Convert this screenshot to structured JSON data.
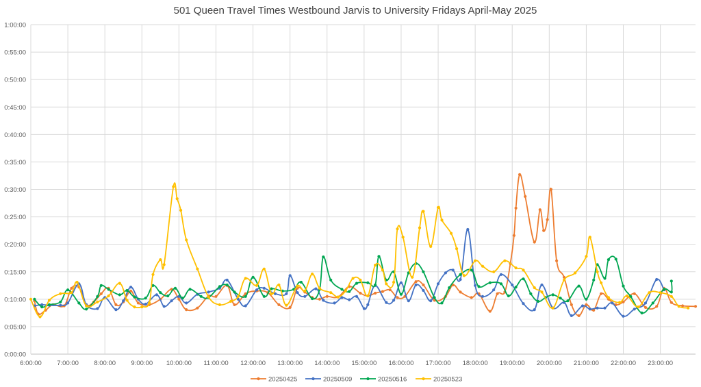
{
  "chart_data": {
    "type": "line",
    "title": "501 Queen Travel Times Westbound Jarvis to University Fridays April-May 2025",
    "xlabel": "",
    "ylabel": "",
    "x_ticks": [
      "6:00:00",
      "7:00:00",
      "8:00:00",
      "9:00:00",
      "10:00:00",
      "11:00:00",
      "12:00:00",
      "13:00:00",
      "14:00:00",
      "15:00:00",
      "16:00:00",
      "17:00:00",
      "18:00:00",
      "19:00:00",
      "20:00:00",
      "21:00:00",
      "22:00:00",
      "23:00:00"
    ],
    "y_ticks": [
      "0:00:00",
      "0:05:00",
      "0:10:00",
      "0:15:00",
      "0:20:00",
      "0:25:00",
      "0:30:00",
      "0:35:00",
      "0:40:00",
      "0:45:00",
      "0:50:00",
      "0:55:00",
      "1:00:00"
    ],
    "xlim_hours": [
      6.0,
      23.95
    ],
    "ylim_minutes": [
      0,
      60
    ],
    "grid": true,
    "legend_position": "bottom",
    "series": [
      {
        "name": "20250425",
        "color": "#ED7D31",
        "points": [
          [
            6.1,
            9.7
          ],
          [
            6.2,
            7.3
          ],
          [
            6.4,
            8
          ],
          [
            6.6,
            9
          ],
          [
            6.9,
            8.8
          ],
          [
            7.1,
            12
          ],
          [
            7.3,
            12.2
          ],
          [
            7.5,
            9
          ],
          [
            7.7,
            9.5
          ],
          [
            7.9,
            11
          ],
          [
            8.1,
            12
          ],
          [
            8.3,
            9
          ],
          [
            8.5,
            9.5
          ],
          [
            8.7,
            11.5
          ],
          [
            8.9,
            9.3
          ],
          [
            9.2,
            9
          ],
          [
            9.5,
            10
          ],
          [
            9.8,
            11.8
          ],
          [
            10,
            10
          ],
          [
            10.2,
            8.1
          ],
          [
            10.5,
            8.4
          ],
          [
            10.8,
            10.6
          ],
          [
            11,
            10.5
          ],
          [
            11.3,
            12.5
          ],
          [
            11.5,
            9
          ],
          [
            11.8,
            11
          ],
          [
            12.1,
            11.5
          ],
          [
            12.4,
            11.2
          ],
          [
            12.7,
            9
          ],
          [
            13,
            8.5
          ],
          [
            13.2,
            12
          ],
          [
            13.4,
            11.3
          ],
          [
            13.6,
            10.3
          ],
          [
            13.8,
            10
          ],
          [
            14,
            10.5
          ],
          [
            14.3,
            10.4
          ],
          [
            14.6,
            12.3
          ],
          [
            14.9,
            11.1
          ],
          [
            15.1,
            10.6
          ],
          [
            15.3,
            11.1
          ],
          [
            15.5,
            11.4
          ],
          [
            15.7,
            11.7
          ],
          [
            15.9,
            10.3
          ],
          [
            16.1,
            10.5
          ],
          [
            16.4,
            13.2
          ],
          [
            16.6,
            12.6
          ],
          [
            16.9,
            9.8
          ],
          [
            17.2,
            10.5
          ],
          [
            17.4,
            12.6
          ],
          [
            17.6,
            11.3
          ],
          [
            17.9,
            10.3
          ],
          [
            18.1,
            11
          ],
          [
            18.4,
            7.8
          ],
          [
            18.6,
            11
          ],
          [
            18.8,
            11.3
          ],
          [
            18.95,
            16.5
          ],
          [
            19.05,
            21.6
          ],
          [
            19.1,
            26.6
          ],
          [
            19.2,
            32.7
          ],
          [
            19.35,
            28.7
          ],
          [
            19.6,
            20.4
          ],
          [
            19.75,
            26.3
          ],
          [
            19.85,
            22.5
          ],
          [
            19.95,
            24.5
          ],
          [
            20.05,
            30
          ],
          [
            20.2,
            17
          ],
          [
            20.4,
            14
          ],
          [
            20.6,
            9
          ],
          [
            20.8,
            7
          ],
          [
            21,
            9
          ],
          [
            21.2,
            8
          ],
          [
            21.4,
            11
          ],
          [
            21.6,
            10
          ],
          [
            21.8,
            9
          ],
          [
            22,
            9.5
          ],
          [
            22.3,
            11
          ],
          [
            22.6,
            8.5
          ],
          [
            22.9,
            8.7
          ],
          [
            23.1,
            12
          ],
          [
            23.3,
            9.4
          ],
          [
            23.6,
            8.8
          ],
          [
            23.95,
            8.7
          ]
        ]
      },
      {
        "name": "20250509",
        "color": "#4472C4",
        "points": [
          [
            6.1,
            8.8
          ],
          [
            6.3,
            9
          ],
          [
            6.5,
            8.9
          ],
          [
            6.8,
            8.9
          ],
          [
            7,
            9.3
          ],
          [
            7.3,
            12.8
          ],
          [
            7.5,
            9
          ],
          [
            7.8,
            8.3
          ],
          [
            8,
            10.3
          ],
          [
            8.3,
            8.1
          ],
          [
            8.5,
            9.7
          ],
          [
            8.7,
            12.2
          ],
          [
            8.9,
            10
          ],
          [
            9.1,
            9.1
          ],
          [
            9.4,
            10.8
          ],
          [
            9.6,
            8.7
          ],
          [
            9.8,
            9.7
          ],
          [
            10,
            10.5
          ],
          [
            10.2,
            9.3
          ],
          [
            10.5,
            10.9
          ],
          [
            10.8,
            11.3
          ],
          [
            11.1,
            12
          ],
          [
            11.3,
            13.5
          ],
          [
            11.6,
            10
          ],
          [
            11.8,
            8.8
          ],
          [
            12.1,
            11.7
          ],
          [
            12.3,
            12
          ],
          [
            12.6,
            11
          ],
          [
            12.9,
            11
          ],
          [
            13,
            14.3
          ],
          [
            13.2,
            11.2
          ],
          [
            13.4,
            10.5
          ],
          [
            13.7,
            11.9
          ],
          [
            13.9,
            9.8
          ],
          [
            14.2,
            9.3
          ],
          [
            14.4,
            10.3
          ],
          [
            14.6,
            9.9
          ],
          [
            14.8,
            10.5
          ],
          [
            15,
            8.3
          ],
          [
            15.1,
            9
          ],
          [
            15.3,
            12.5
          ],
          [
            15.6,
            9.4
          ],
          [
            15.8,
            9.8
          ],
          [
            16,
            13
          ],
          [
            16.2,
            9.7
          ],
          [
            16.4,
            12.6
          ],
          [
            16.6,
            11.6
          ],
          [
            16.8,
            9.7
          ],
          [
            17,
            12.8
          ],
          [
            17.2,
            14.8
          ],
          [
            17.4,
            15.3
          ],
          [
            17.6,
            13.6
          ],
          [
            17.8,
            22.7
          ],
          [
            18,
            12.5
          ],
          [
            18.2,
            10.5
          ],
          [
            18.5,
            11.7
          ],
          [
            18.7,
            14.5
          ],
          [
            19,
            12.6
          ],
          [
            19.3,
            9.2
          ],
          [
            19.6,
            8.1
          ],
          [
            19.8,
            12.6
          ],
          [
            20.1,
            8.4
          ],
          [
            20.4,
            9.4
          ],
          [
            20.6,
            7
          ],
          [
            20.9,
            8.8
          ],
          [
            21.1,
            8.2
          ],
          [
            21.3,
            8.4
          ],
          [
            21.5,
            8.4
          ],
          [
            21.7,
            9.3
          ],
          [
            22,
            6.9
          ],
          [
            22.3,
            8.2
          ],
          [
            22.6,
            9.3
          ],
          [
            22.9,
            13.6
          ],
          [
            23.1,
            11.7
          ]
        ]
      },
      {
        "name": "20250516",
        "color": "#00A651",
        "points": [
          [
            6.1,
            10
          ],
          [
            6.3,
            8.6
          ],
          [
            6.5,
            9
          ],
          [
            6.8,
            9.5
          ],
          [
            7,
            11.7
          ],
          [
            7.3,
            9.3
          ],
          [
            7.5,
            8.2
          ],
          [
            7.8,
            10.5
          ],
          [
            7.9,
            12.5
          ],
          [
            8.1,
            11.8
          ],
          [
            8.4,
            10.8
          ],
          [
            8.6,
            11.6
          ],
          [
            8.8,
            10.4
          ],
          [
            9.1,
            10.2
          ],
          [
            9.3,
            12.5
          ],
          [
            9.5,
            11.2
          ],
          [
            9.7,
            10.6
          ],
          [
            9.9,
            12
          ],
          [
            10.1,
            10.2
          ],
          [
            10.3,
            11.8
          ],
          [
            10.6,
            10.5
          ],
          [
            10.8,
            10.3
          ],
          [
            11.1,
            12.3
          ],
          [
            11.3,
            12.6
          ],
          [
            11.5,
            11.3
          ],
          [
            11.8,
            10.5
          ],
          [
            12,
            14
          ],
          [
            12.3,
            10.5
          ],
          [
            12.5,
            11.9
          ],
          [
            12.8,
            11.5
          ],
          [
            13.1,
            11.8
          ],
          [
            13.3,
            13.1
          ],
          [
            13.6,
            10.1
          ],
          [
            13.8,
            11.8
          ],
          [
            13.9,
            17.7
          ],
          [
            14.1,
            13.5
          ],
          [
            14.4,
            11.8
          ],
          [
            14.6,
            11.4
          ],
          [
            14.8,
            12.9
          ],
          [
            15.1,
            13
          ],
          [
            15.3,
            12.6
          ],
          [
            15.4,
            17.8
          ],
          [
            15.6,
            13.5
          ],
          [
            15.8,
            15
          ],
          [
            16,
            10.9
          ],
          [
            16.2,
            14.8
          ],
          [
            16.4,
            16.5
          ],
          [
            16.6,
            15
          ],
          [
            16.9,
            10.3
          ],
          [
            17.1,
            9.3
          ],
          [
            17.3,
            12.1
          ],
          [
            17.6,
            14.5
          ],
          [
            17.9,
            15.3
          ],
          [
            18.1,
            12.3
          ],
          [
            18.4,
            13
          ],
          [
            18.7,
            12.8
          ],
          [
            18.9,
            10.6
          ],
          [
            19.1,
            12.2
          ],
          [
            19.3,
            13.7
          ],
          [
            19.5,
            11
          ],
          [
            19.7,
            9.6
          ],
          [
            19.9,
            10.3
          ],
          [
            20.1,
            10.8
          ],
          [
            20.3,
            10.2
          ],
          [
            20.5,
            9.7
          ],
          [
            20.8,
            12.4
          ],
          [
            21,
            10
          ],
          [
            21.2,
            13.5
          ],
          [
            21.3,
            16.3
          ],
          [
            21.5,
            13.8
          ],
          [
            21.6,
            17.2
          ],
          [
            21.8,
            17.3
          ],
          [
            22,
            12.4
          ],
          [
            22.2,
            10.5
          ],
          [
            22.5,
            7.5
          ],
          [
            22.8,
            9.3
          ],
          [
            23.1,
            11.8
          ],
          [
            23.3,
            11.3
          ],
          [
            23.3,
            13.3
          ]
        ]
      },
      {
        "name": "20250523",
        "color": "#FFC000",
        "points": [
          [
            6,
            10
          ],
          [
            6.25,
            6.8
          ],
          [
            6.5,
            9.8
          ],
          [
            6.8,
            11
          ],
          [
            7.1,
            11.2
          ],
          [
            7.25,
            13.1
          ],
          [
            7.5,
            8.8
          ],
          [
            7.8,
            9.5
          ],
          [
            8.1,
            10.6
          ],
          [
            8.4,
            12.9
          ],
          [
            8.6,
            9.8
          ],
          [
            8.8,
            8.6
          ],
          [
            9,
            8.6
          ],
          [
            9.2,
            9.3
          ],
          [
            9.3,
            14.5
          ],
          [
            9.5,
            17.2
          ],
          [
            9.6,
            16.3
          ],
          [
            9.85,
            30.5
          ],
          [
            9.95,
            28.3
          ],
          [
            10.05,
            26.2
          ],
          [
            10.2,
            20.8
          ],
          [
            10.5,
            15.5
          ],
          [
            10.8,
            10.4
          ],
          [
            11.1,
            9
          ],
          [
            11.4,
            9.6
          ],
          [
            11.6,
            10.5
          ],
          [
            11.8,
            13.8
          ],
          [
            12.1,
            12.5
          ],
          [
            12.3,
            15.5
          ],
          [
            12.5,
            11
          ],
          [
            12.7,
            12.6
          ],
          [
            12.9,
            8.9
          ],
          [
            13.2,
            12.4
          ],
          [
            13.4,
            11.5
          ],
          [
            13.6,
            14.6
          ],
          [
            13.8,
            12
          ],
          [
            14.1,
            11.2
          ],
          [
            14.3,
            10.4
          ],
          [
            14.5,
            11.5
          ],
          [
            14.7,
            13.8
          ],
          [
            14.9,
            13.5
          ],
          [
            15.1,
            10.6
          ],
          [
            15.3,
            16.2
          ],
          [
            15.5,
            15.3
          ],
          [
            15.6,
            12.8
          ],
          [
            15.8,
            13.1
          ],
          [
            15.9,
            22.8
          ],
          [
            16.05,
            21.3
          ],
          [
            16.3,
            14
          ],
          [
            16.5,
            23
          ],
          [
            16.6,
            26
          ],
          [
            16.8,
            19.6
          ],
          [
            17,
            26.7
          ],
          [
            17.1,
            24.4
          ],
          [
            17.35,
            22
          ],
          [
            17.5,
            19.2
          ],
          [
            17.7,
            14.3
          ],
          [
            18,
            17
          ],
          [
            18.2,
            16
          ],
          [
            18.5,
            15
          ],
          [
            18.8,
            17
          ],
          [
            19.1,
            15.7
          ],
          [
            19.3,
            15.3
          ],
          [
            19.6,
            12.1
          ],
          [
            19.8,
            11.3
          ],
          [
            20.1,
            8.4
          ],
          [
            20.4,
            13.5
          ],
          [
            20.7,
            14.8
          ],
          [
            21,
            17.8
          ],
          [
            21.1,
            21.3
          ],
          [
            21.3,
            15
          ],
          [
            21.4,
            13
          ],
          [
            21.6,
            10.3
          ],
          [
            21.9,
            9.4
          ],
          [
            22.1,
            10.6
          ],
          [
            22.4,
            8.6
          ],
          [
            22.7,
            11.2
          ],
          [
            23,
            11.2
          ],
          [
            23.3,
            10.5
          ],
          [
            23.5,
            8.7
          ],
          [
            23.75,
            8.4
          ]
        ]
      }
    ]
  }
}
